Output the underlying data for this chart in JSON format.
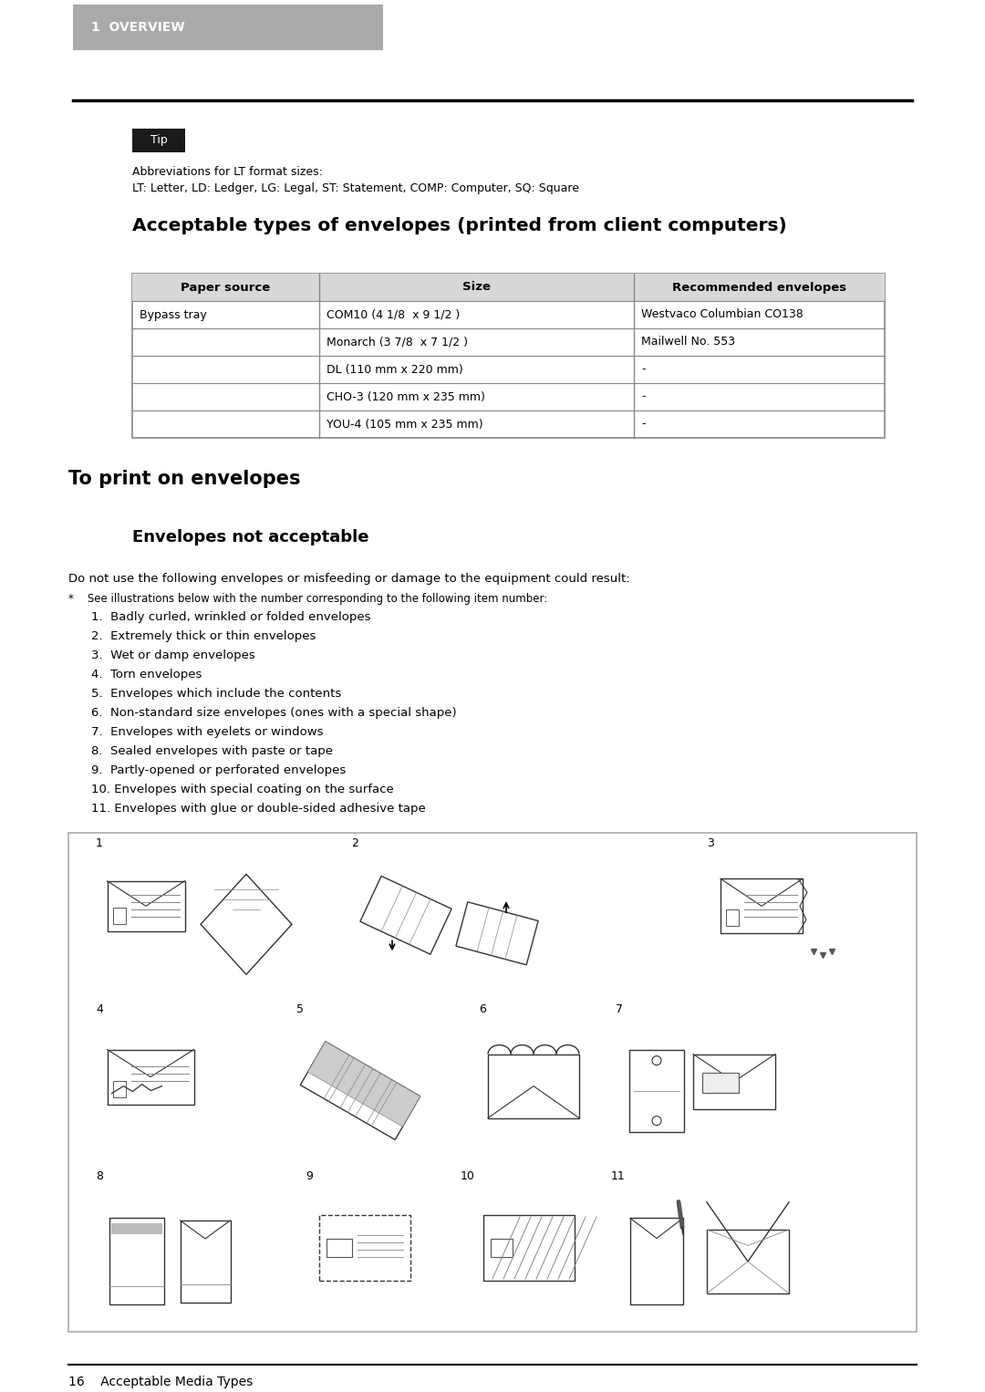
{
  "bg_color": "#ffffff",
  "header_bg": "#aaaaaa",
  "header_text_color": "#ffffff",
  "header_text": "1  OVERVIEW",
  "tip_bg": "#1a1a1a",
  "tip_text": "Tip",
  "tip_text_color": "#ffffff",
  "abbrev_line1": "Abbreviations for LT format sizes:",
  "abbrev_line2": "LT: Letter, LD: Ledger, LG: Legal, ST: Statement, COMP: Computer, SQ: Square",
  "section_title": "Acceptable types of envelopes (printed from client computers)",
  "table_headers": [
    "Paper source",
    "Size",
    "Recommended envelopes"
  ],
  "table_rows": [
    [
      "Bypass tray",
      "COM10 (4 1/8  x 9 1/2 )",
      "Westvaco Columbian CO138"
    ],
    [
      "",
      "Monarch (3 7/8  x 7 1/2 )",
      "Mailwell No. 553"
    ],
    [
      "",
      "DL (110 mm x 220 mm)",
      "-"
    ],
    [
      "",
      "CHO-3 (120 mm x 235 mm)",
      "-"
    ],
    [
      "",
      "YOU-4 (105 mm x 235 mm)",
      "-"
    ]
  ],
  "section2_title": "To print on envelopes",
  "subsection_title": "Envelopes not acceptable",
  "para1": "Do not use the following envelopes or misfeeding or damage to the equipment could result:",
  "bullet_star": "*    See illustrations below with the number corresponding to the following item number:",
  "numbered_items": [
    "1.  Badly curled, wrinkled or folded envelopes",
    "2.  Extremely thick or thin envelopes",
    "3.  Wet or damp envelopes",
    "4.  Torn envelopes",
    "5.  Envelopes which include the contents",
    "6.  Non-standard size envelopes (ones with a special shape)",
    "7.  Envelopes with eyelets or windows",
    "8.  Sealed envelopes with paste or tape",
    "9.  Partly-opened or perforated envelopes",
    "10. Envelopes with special coating on the surface",
    "11. Envelopes with glue or double-sided adhesive tape"
  ],
  "footer_text": "16    Acceptable Media Types",
  "table_border_color": "#888888"
}
